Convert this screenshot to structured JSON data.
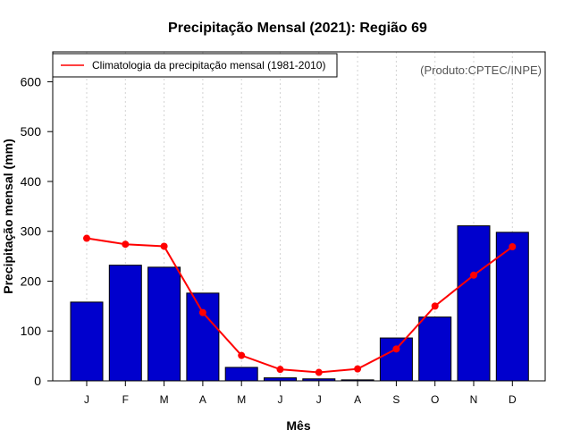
{
  "chart_data": {
    "type": "bar",
    "title": "Precipitação Mensal (2021): Região 69",
    "xlabel": "Mês",
    "ylabel": "Precipitação mensal (mm)",
    "ylim": [
      0,
      660
    ],
    "yticks": [
      0,
      100,
      200,
      300,
      400,
      500,
      600
    ],
    "categories": [
      "J",
      "F",
      "M",
      "A",
      "M",
      "J",
      "J",
      "A",
      "S",
      "O",
      "N",
      "D"
    ],
    "series": [
      {
        "name": "Precipitação mensal (2021)",
        "type": "bar",
        "color": "#0000cd",
        "values": [
          158,
          232,
          228,
          176,
          27,
          6,
          4,
          2,
          86,
          128,
          311,
          298
        ]
      },
      {
        "name": "Climatologia da precipitação mensal (1981-2010)",
        "type": "line",
        "color": "#ff0000",
        "values": [
          286,
          274,
          270,
          137,
          51,
          23,
          17,
          24,
          64,
          150,
          212,
          269
        ]
      }
    ],
    "legend": {
      "position": "top-left",
      "entries": [
        "Climatologia da precipitação mensal (1981-2010)"
      ]
    },
    "annotation": "(Produto:CPTEC/INPE)",
    "grid": {
      "vertical": true,
      "horizontal": false
    }
  }
}
